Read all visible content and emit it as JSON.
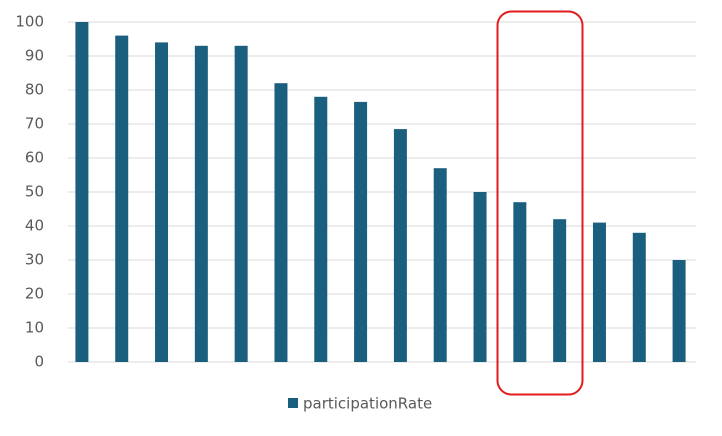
{
  "chart_data": {
    "type": "bar",
    "categories": [
      null,
      null,
      null,
      null,
      null,
      null,
      null,
      null,
      null,
      null,
      null,
      null,
      null,
      null,
      null,
      null
    ],
    "series": [
      {
        "name": "participationRate",
        "color": "#1b5f7e",
        "values": [
          100,
          96,
          94,
          93,
          93,
          82,
          78,
          76.5,
          68.5,
          57,
          50,
          47,
          42,
          41,
          38,
          30
        ]
      }
    ],
    "ylim": [
      0,
      100
    ],
    "yticks": [
      0,
      10,
      20,
      30,
      40,
      50,
      60,
      70,
      80,
      90,
      100
    ],
    "grid": true,
    "legend": "bottom"
  }
}
